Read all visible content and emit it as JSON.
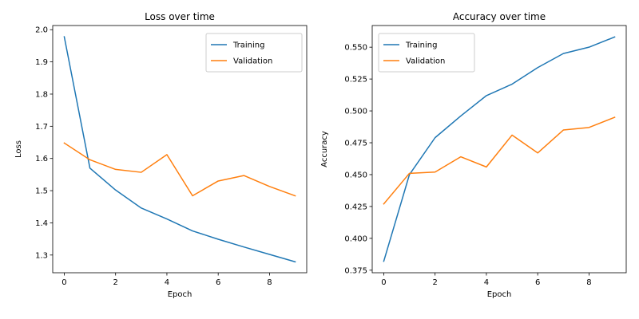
{
  "chart_data": [
    {
      "type": "line",
      "title": "Loss over time",
      "xlabel": "Epoch",
      "ylabel": "Loss",
      "xlim": [
        -0.45,
        9.45
      ],
      "ylim": [
        1.245,
        2.013
      ],
      "x_ticks": [
        0,
        2,
        4,
        6,
        8
      ],
      "x_tick_labels": [
        "0",
        "2",
        "4",
        "6",
        "8"
      ],
      "y_ticks": [
        1.3,
        1.4,
        1.5,
        1.6,
        1.7,
        1.8,
        1.9,
        2.0
      ],
      "y_tick_labels": [
        "1.3",
        "1.4",
        "1.5",
        "1.6",
        "1.7",
        "1.8",
        "1.9",
        "2.0"
      ],
      "grid": false,
      "legend_position": "top-right",
      "x": [
        0,
        1,
        2,
        3,
        4,
        5,
        6,
        7,
        8,
        9
      ],
      "series": [
        {
          "name": "Training",
          "color": "#1f77b4",
          "values": [
            1.978,
            1.57,
            1.502,
            1.446,
            1.412,
            1.375,
            1.349,
            1.325,
            1.302,
            1.279
          ]
        },
        {
          "name": "Validation",
          "color": "#ff7f0e",
          "values": [
            1.648,
            1.596,
            1.566,
            1.557,
            1.612,
            1.484,
            1.53,
            1.547,
            1.513,
            1.484
          ]
        }
      ]
    },
    {
      "type": "line",
      "title": "Accuracy over time",
      "xlabel": "Epoch",
      "ylabel": "Accuracy",
      "xlim": [
        -0.45,
        9.45
      ],
      "ylim": [
        0.373,
        0.567
      ],
      "x_ticks": [
        0,
        2,
        4,
        6,
        8
      ],
      "x_tick_labels": [
        "0",
        "2",
        "4",
        "6",
        "8"
      ],
      "y_ticks": [
        0.375,
        0.4,
        0.425,
        0.45,
        0.475,
        0.5,
        0.525,
        0.55
      ],
      "y_tick_labels": [
        "0.375",
        "0.400",
        "0.425",
        "0.450",
        "0.475",
        "0.500",
        "0.525",
        "0.550"
      ],
      "grid": false,
      "legend_position": "top-left",
      "x": [
        0,
        1,
        2,
        3,
        4,
        5,
        6,
        7,
        8,
        9
      ],
      "series": [
        {
          "name": "Training",
          "color": "#1f77b4",
          "values": [
            0.382,
            0.45,
            0.479,
            0.496,
            0.512,
            0.521,
            0.534,
            0.545,
            0.55,
            0.558
          ]
        },
        {
          "name": "Validation",
          "color": "#ff7f0e",
          "values": [
            0.427,
            0.451,
            0.452,
            0.464,
            0.456,
            0.481,
            0.467,
            0.485,
            0.487,
            0.495
          ]
        }
      ]
    }
  ]
}
